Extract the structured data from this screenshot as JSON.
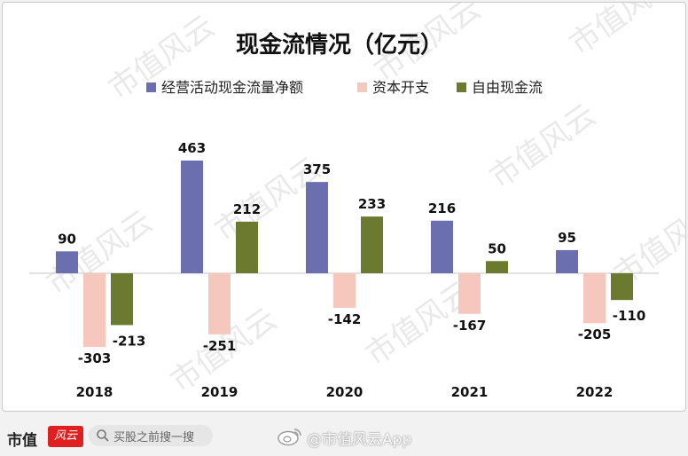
{
  "chart_data": {
    "type": "bar",
    "title": "现金流情况（亿元）",
    "categories": [
      "2018",
      "2019",
      "2020",
      "2021",
      "2022"
    ],
    "series": [
      {
        "name": "经营活动现金流量净额",
        "color": "#6b6fb0",
        "values": [
          90,
          463,
          375,
          216,
          95
        ]
      },
      {
        "name": "资本开支",
        "color": "#f5c7bd",
        "values": [
          -303,
          -251,
          -142,
          -167,
          -205
        ]
      },
      {
        "name": "自由现金流",
        "color": "#6b7a2e",
        "values": [
          -213,
          212,
          233,
          50,
          -110
        ]
      }
    ],
    "legend_position": "top",
    "grid": false
  },
  "watermark": "市值风云",
  "footer": {
    "logo_text": "市值",
    "badge_text": "风云",
    "search_placeholder": "买股之前搜一搜",
    "weibo_text": "@市值风云App"
  }
}
